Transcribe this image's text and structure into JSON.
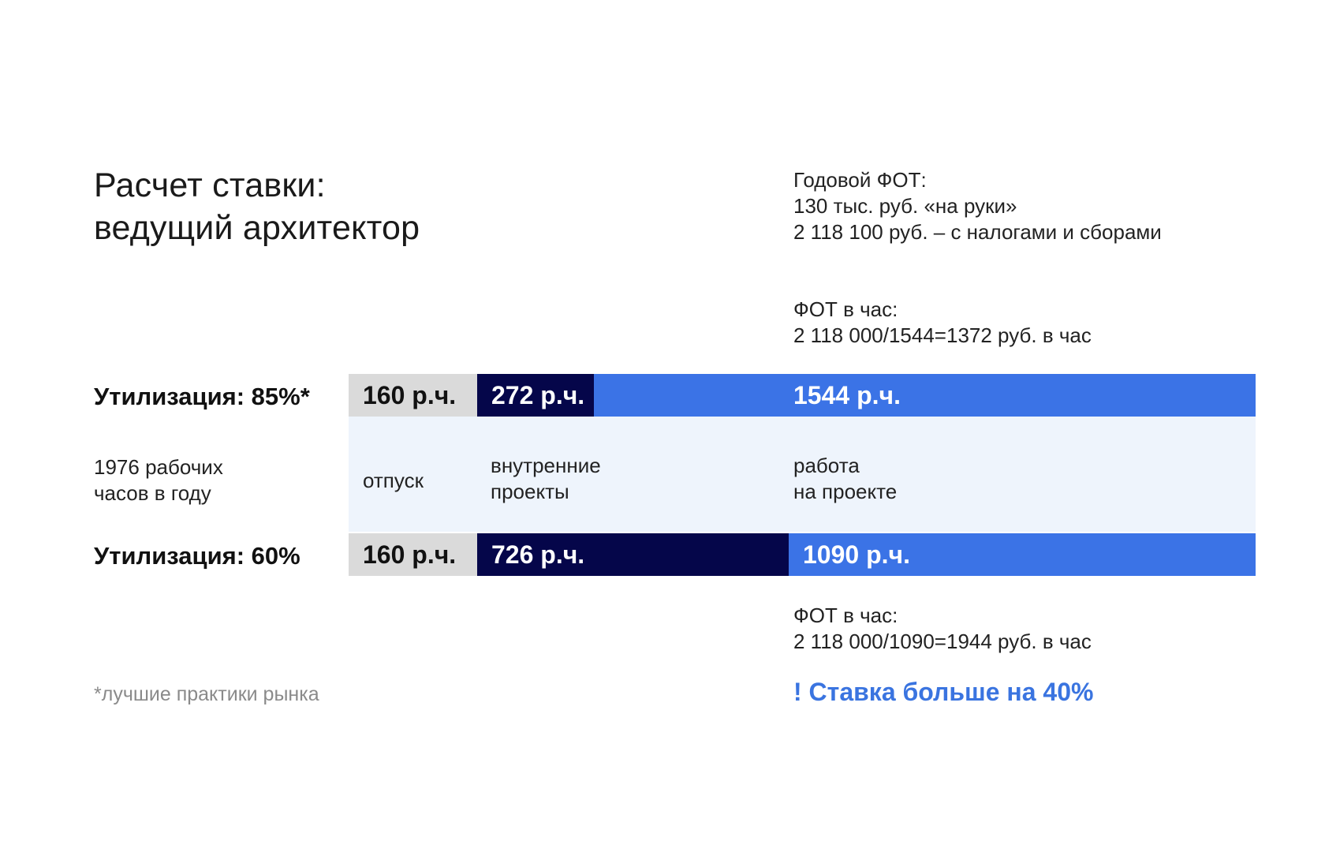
{
  "title": {
    "line1": "Расчет ставки:",
    "line2": "ведущий архитектор"
  },
  "annual_fot": {
    "heading": "Годовой ФОТ:",
    "net": "130 тыс. руб. «на руки»",
    "gross": "2 118 100 руб. – с налогами и сборами"
  },
  "fot_hour_85": {
    "heading": "ФОТ в час:",
    "formula": "2 118 000/1544=1372 руб. в час"
  },
  "fot_hour_60": {
    "heading": "ФОТ в час:",
    "formula": "2 118 000/1090=1944 руб. в час"
  },
  "hours_label": {
    "line1": "1976 рабочих",
    "line2": "часов в году"
  },
  "categories": {
    "vacation": "отпуск",
    "internal_line1": "внутренние",
    "internal_line2": "проекты",
    "project_line1": "работа",
    "project_line2": "на проекте"
  },
  "footnote": "*лучшие практики рынка",
  "highlight": "! Ставка больше на 40%",
  "colors": {
    "vacation": "#dadada",
    "internal": "#05064a",
    "project": "#3b73e6",
    "band": "#eef4fc",
    "highlight": "#3a74e0"
  },
  "chart_data": {
    "type": "bar",
    "stacked": true,
    "orientation": "horizontal",
    "total_hours": 1976,
    "segment_names": [
      "отпуск",
      "внутренние проекты",
      "работа на проекте"
    ],
    "rows": [
      {
        "label": "Утилизация: 85%*",
        "segments": [
          {
            "value": 160,
            "text": "160 р.ч."
          },
          {
            "value": 272,
            "text": "272 р.ч."
          },
          {
            "value": 1544,
            "text": "1544 р.ч."
          }
        ]
      },
      {
        "label": "Утилизация: 60%",
        "segments": [
          {
            "value": 160,
            "text": "160 р.ч."
          },
          {
            "value": 726,
            "text": "726 р.ч."
          },
          {
            "value": 1090,
            "text": "1090 р.ч."
          }
        ]
      }
    ]
  }
}
